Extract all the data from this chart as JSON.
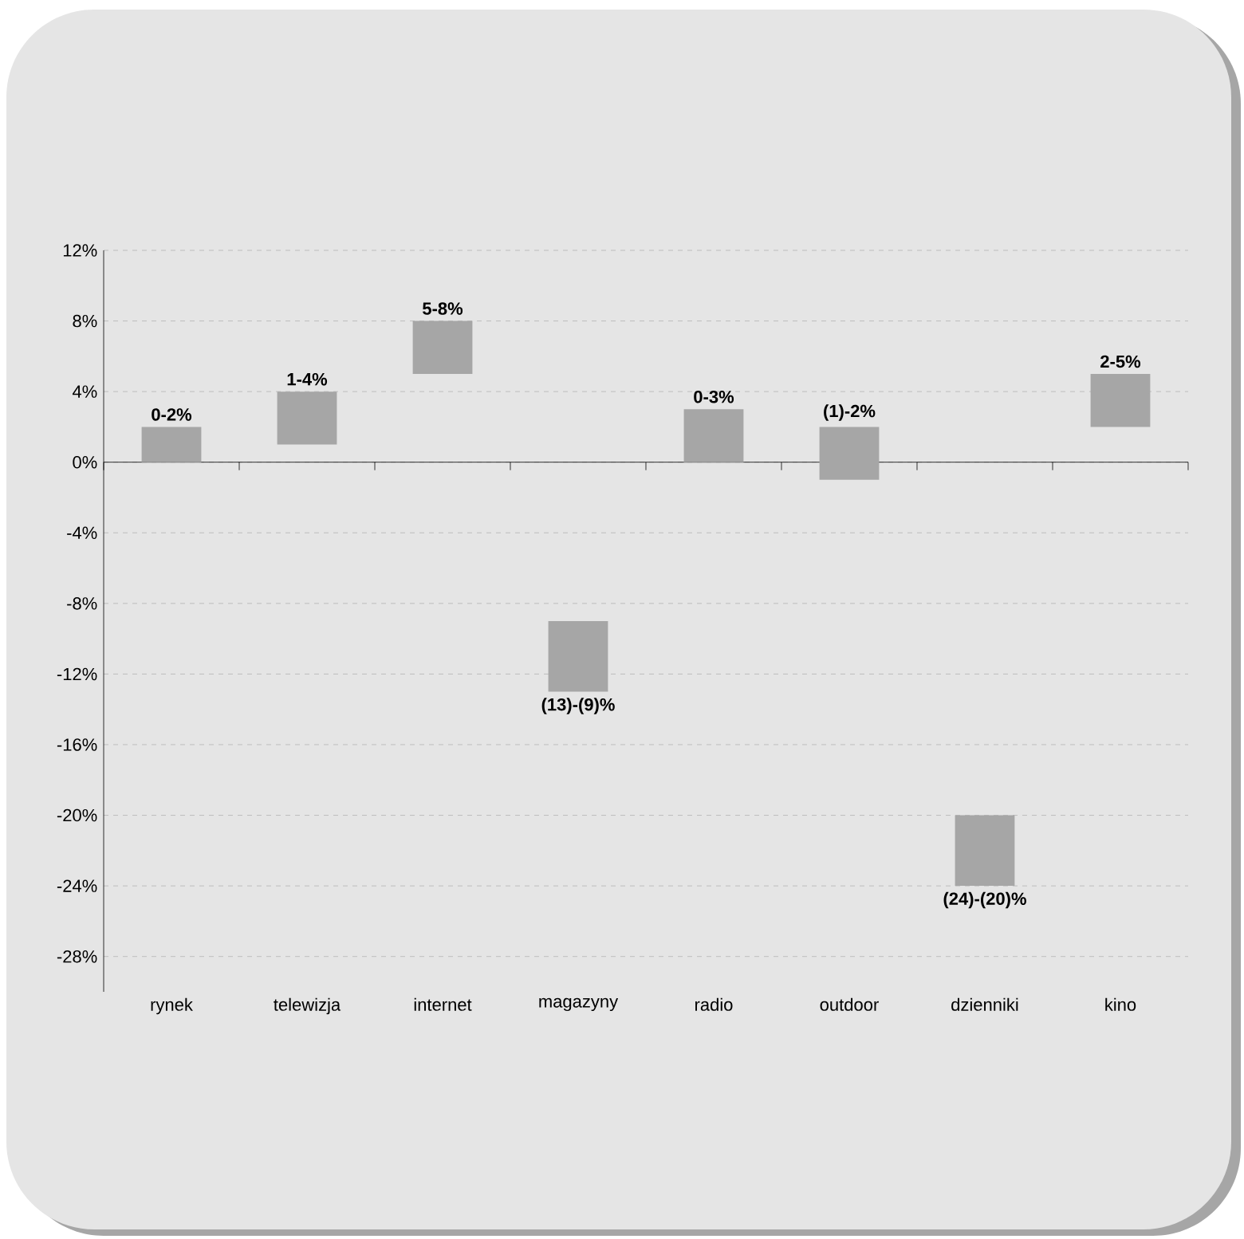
{
  "chart_data": {
    "type": "bar",
    "categories": [
      "rynek",
      "telewizja",
      "internet",
      "magazyny",
      "radio",
      "outdoor",
      "dzienniki",
      "kino"
    ],
    "base": [
      0,
      1,
      5,
      -13,
      0,
      -1,
      -24,
      2
    ],
    "values": [
      2,
      3,
      3,
      4,
      3,
      3,
      4,
      3
    ],
    "annotations": [
      {
        "text": "0-2%",
        "x": "rynek",
        "y": 2
      },
      {
        "text": "1-4%",
        "x": "telewizja",
        "y": 4
      },
      {
        "text": "5-8%",
        "x": "internet",
        "y": 8
      },
      {
        "text": "(13)-(9)%",
        "x": "magazyny",
        "y": -13
      },
      {
        "text": "0-3%",
        "x": "radio",
        "y": 3
      },
      {
        "text": "(1)-2%",
        "x": "outdoor",
        "y": 2
      },
      {
        "text": "(24)-(20)%",
        "x": "dzienniki",
        "y": -24
      },
      {
        "text": "2-5%",
        "x": "kino",
        "y": 5
      }
    ],
    "color": "#a6a6a6",
    "ylim": [
      -30,
      12
    ],
    "yticks": [
      {
        "value": -28,
        "label": "-28%"
      },
      {
        "value": -24,
        "label": "-24%"
      },
      {
        "value": -20,
        "label": "-20%"
      },
      {
        "value": -16,
        "label": "-16%"
      },
      {
        "value": -12,
        "label": "-12%"
      },
      {
        "value": -8,
        "label": "-8%"
      },
      {
        "value": -4,
        "label": "-4%"
      },
      {
        "value": 0,
        "label": "0%"
      },
      {
        "value": 4,
        "label": "4%"
      },
      {
        "value": 8,
        "label": "8%"
      },
      {
        "value": 12,
        "label": "12%"
      }
    ],
    "grid": "y"
  }
}
